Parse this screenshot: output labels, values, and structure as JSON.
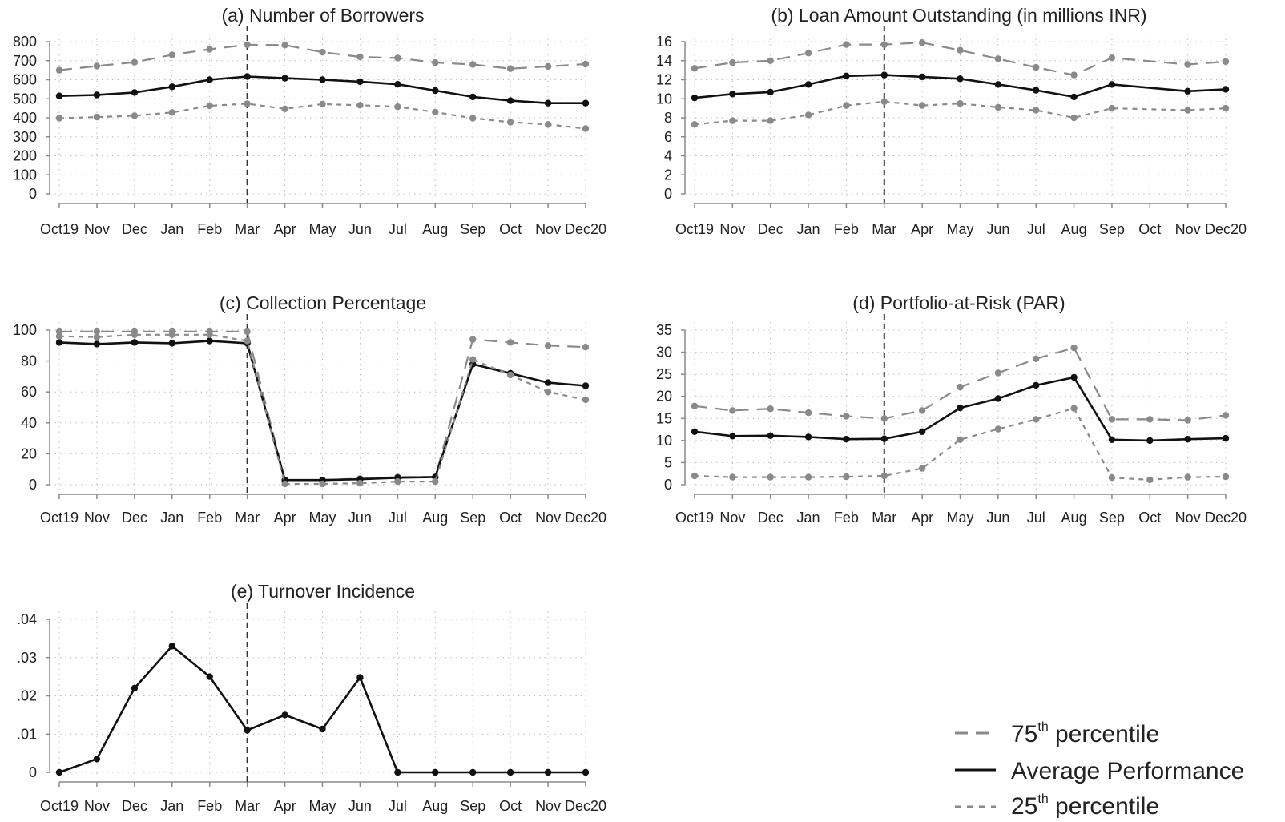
{
  "legend": {
    "p75_main": "75",
    "p75_sup": "th",
    "p75_rest": " percentile",
    "avg": "Average Performance",
    "p25_main": "25",
    "p25_sup": "th",
    "p25_rest": " percentile"
  },
  "colors": {
    "average": "#111111",
    "percentile": "#8a8a8a",
    "grid": "#bdbdbd",
    "axis": "#8a8a8a",
    "vline": "#333333"
  },
  "chart_data": [
    {
      "type": "line",
      "title": "(a) Number of Borrowers",
      "categories": [
        "Oct19",
        "Nov",
        "Dec",
        "Jan",
        "Feb",
        "Mar",
        "Apr",
        "May",
        "Jun",
        "Jul",
        "Aug",
        "Sep",
        "Oct",
        "Nov",
        "Dec20"
      ],
      "y_ticks": [
        "800",
        "700",
        "600",
        "500",
        "400",
        "300",
        "200",
        "100",
        "0"
      ],
      "ylim": [
        0,
        800
      ],
      "vline_at": "Mar",
      "grid": true,
      "series": [
        {
          "role": "p75",
          "values": [
            650,
            672,
            692,
            731,
            760,
            784,
            782,
            745,
            720,
            714,
            690,
            680,
            658,
            670,
            682
          ]
        },
        {
          "role": "average",
          "values": [
            515,
            520,
            533,
            563,
            600,
            617,
            608,
            600,
            590,
            576,
            543,
            510,
            490,
            477,
            477
          ]
        },
        {
          "role": "p25",
          "values": [
            398,
            404,
            411,
            428,
            463,
            474,
            447,
            472,
            466,
            458,
            430,
            398,
            377,
            365,
            343
          ]
        }
      ]
    },
    {
      "type": "line",
      "title": "(b) Loan Amount Outstanding (in millions INR)",
      "categories": [
        "Oct19",
        "Nov",
        "Dec",
        "Jan",
        "Feb",
        "Mar",
        "Apr",
        "May",
        "Jun",
        "Jul",
        "Aug",
        "Sep",
        "Oct",
        "Nov",
        "Dec20"
      ],
      "y_ticks": [
        "16",
        "14",
        "12",
        "10",
        "8",
        "6",
        "4",
        "2",
        "0"
      ],
      "ylim": [
        0,
        16
      ],
      "vline_at": "Mar",
      "grid": true,
      "series": [
        {
          "role": "p75",
          "values": [
            13.2,
            13.8,
            14.0,
            14.8,
            15.7,
            15.7,
            15.9,
            15.1,
            14.2,
            13.3,
            12.5,
            14.3,
            null,
            13.6,
            13.9
          ]
        },
        {
          "role": "average",
          "values": [
            10.1,
            10.5,
            10.7,
            11.5,
            12.4,
            12.5,
            12.3,
            12.1,
            11.5,
            10.9,
            10.2,
            11.5,
            null,
            10.8,
            11.0
          ]
        },
        {
          "role": "p25",
          "values": [
            7.3,
            7.7,
            7.7,
            8.3,
            9.3,
            9.7,
            9.3,
            9.5,
            9.1,
            8.8,
            8.0,
            9.0,
            null,
            8.8,
            9.0
          ]
        }
      ]
    },
    {
      "type": "line",
      "title": "(c) Collection Percentage",
      "categories": [
        "Oct19",
        "Nov",
        "Dec",
        "Jan",
        "Feb",
        "Mar",
        "Apr",
        "May",
        "Jun",
        "Jul",
        "Aug",
        "Sep",
        "Oct",
        "Nov",
        "Dec20"
      ],
      "y_ticks": [
        "100",
        "80",
        "60",
        "40",
        "20",
        "0"
      ],
      "ylim": [
        0,
        100
      ],
      "vline_at": "Mar",
      "grid": true,
      "series": [
        {
          "role": "p75",
          "values": [
            99,
            99,
            99,
            99,
            99,
            99,
            3,
            3,
            4,
            5,
            5,
            94,
            92,
            90,
            89
          ]
        },
        {
          "role": "average",
          "values": [
            92,
            91,
            92,
            91.5,
            93,
            91.5,
            3,
            3,
            3.5,
            4.5,
            5,
            78,
            72,
            66,
            64
          ]
        },
        {
          "role": "p25",
          "values": [
            96,
            95.5,
            97,
            97,
            97,
            93,
            0.5,
            0.5,
            1,
            2,
            2,
            81,
            71,
            60,
            55
          ]
        }
      ]
    },
    {
      "type": "line",
      "title": "(d) Portfolio-at-Risk (PAR)",
      "categories": [
        "Oct19",
        "Nov",
        "Dec",
        "Jan",
        "Feb",
        "Mar",
        "Apr",
        "May",
        "Jun",
        "Jul",
        "Aug",
        "Sep",
        "Oct",
        "Nov",
        "Dec20"
      ],
      "y_ticks": [
        "35",
        "30",
        "25",
        "20",
        "15",
        "10",
        "5",
        "0"
      ],
      "ylim": [
        0,
        35
      ],
      "vline_at": "Mar",
      "grid": true,
      "series": [
        {
          "role": "p75",
          "values": [
            17.8,
            16.8,
            17.2,
            16.3,
            15.5,
            15.0,
            16.8,
            22.1,
            25.3,
            28.5,
            31.0,
            14.8,
            14.8,
            14.6,
            15.7
          ]
        },
        {
          "role": "average",
          "values": [
            12.0,
            11.0,
            11.1,
            10.8,
            10.3,
            10.4,
            12.0,
            17.4,
            19.5,
            22.5,
            24.3,
            10.2,
            10.0,
            10.3,
            10.5
          ]
        },
        {
          "role": "p25",
          "values": [
            2.0,
            1.7,
            1.7,
            1.7,
            1.8,
            2.0,
            3.7,
            10.2,
            12.6,
            14.8,
            17.3,
            1.6,
            1.1,
            1.7,
            1.8
          ]
        }
      ]
    },
    {
      "type": "line",
      "title": "(e) Turnover Incidence",
      "categories": [
        "Oct19",
        "Nov",
        "Dec",
        "Jan",
        "Feb",
        "Mar",
        "Apr",
        "May",
        "Jun",
        "Jul",
        "Aug",
        "Sep",
        "Oct",
        "Nov",
        "Dec20"
      ],
      "y_ticks": [
        ".04",
        ".03",
        ".02",
        ".01",
        "0"
      ],
      "ylim": [
        0,
        0.04
      ],
      "vline_at": "Mar",
      "grid": true,
      "series": [
        {
          "role": "average",
          "values": [
            0,
            0.0035,
            0.022,
            0.033,
            0.025,
            0.011,
            0.015,
            0.0113,
            0.0248,
            0,
            0,
            0,
            0,
            0,
            0
          ]
        }
      ]
    }
  ]
}
